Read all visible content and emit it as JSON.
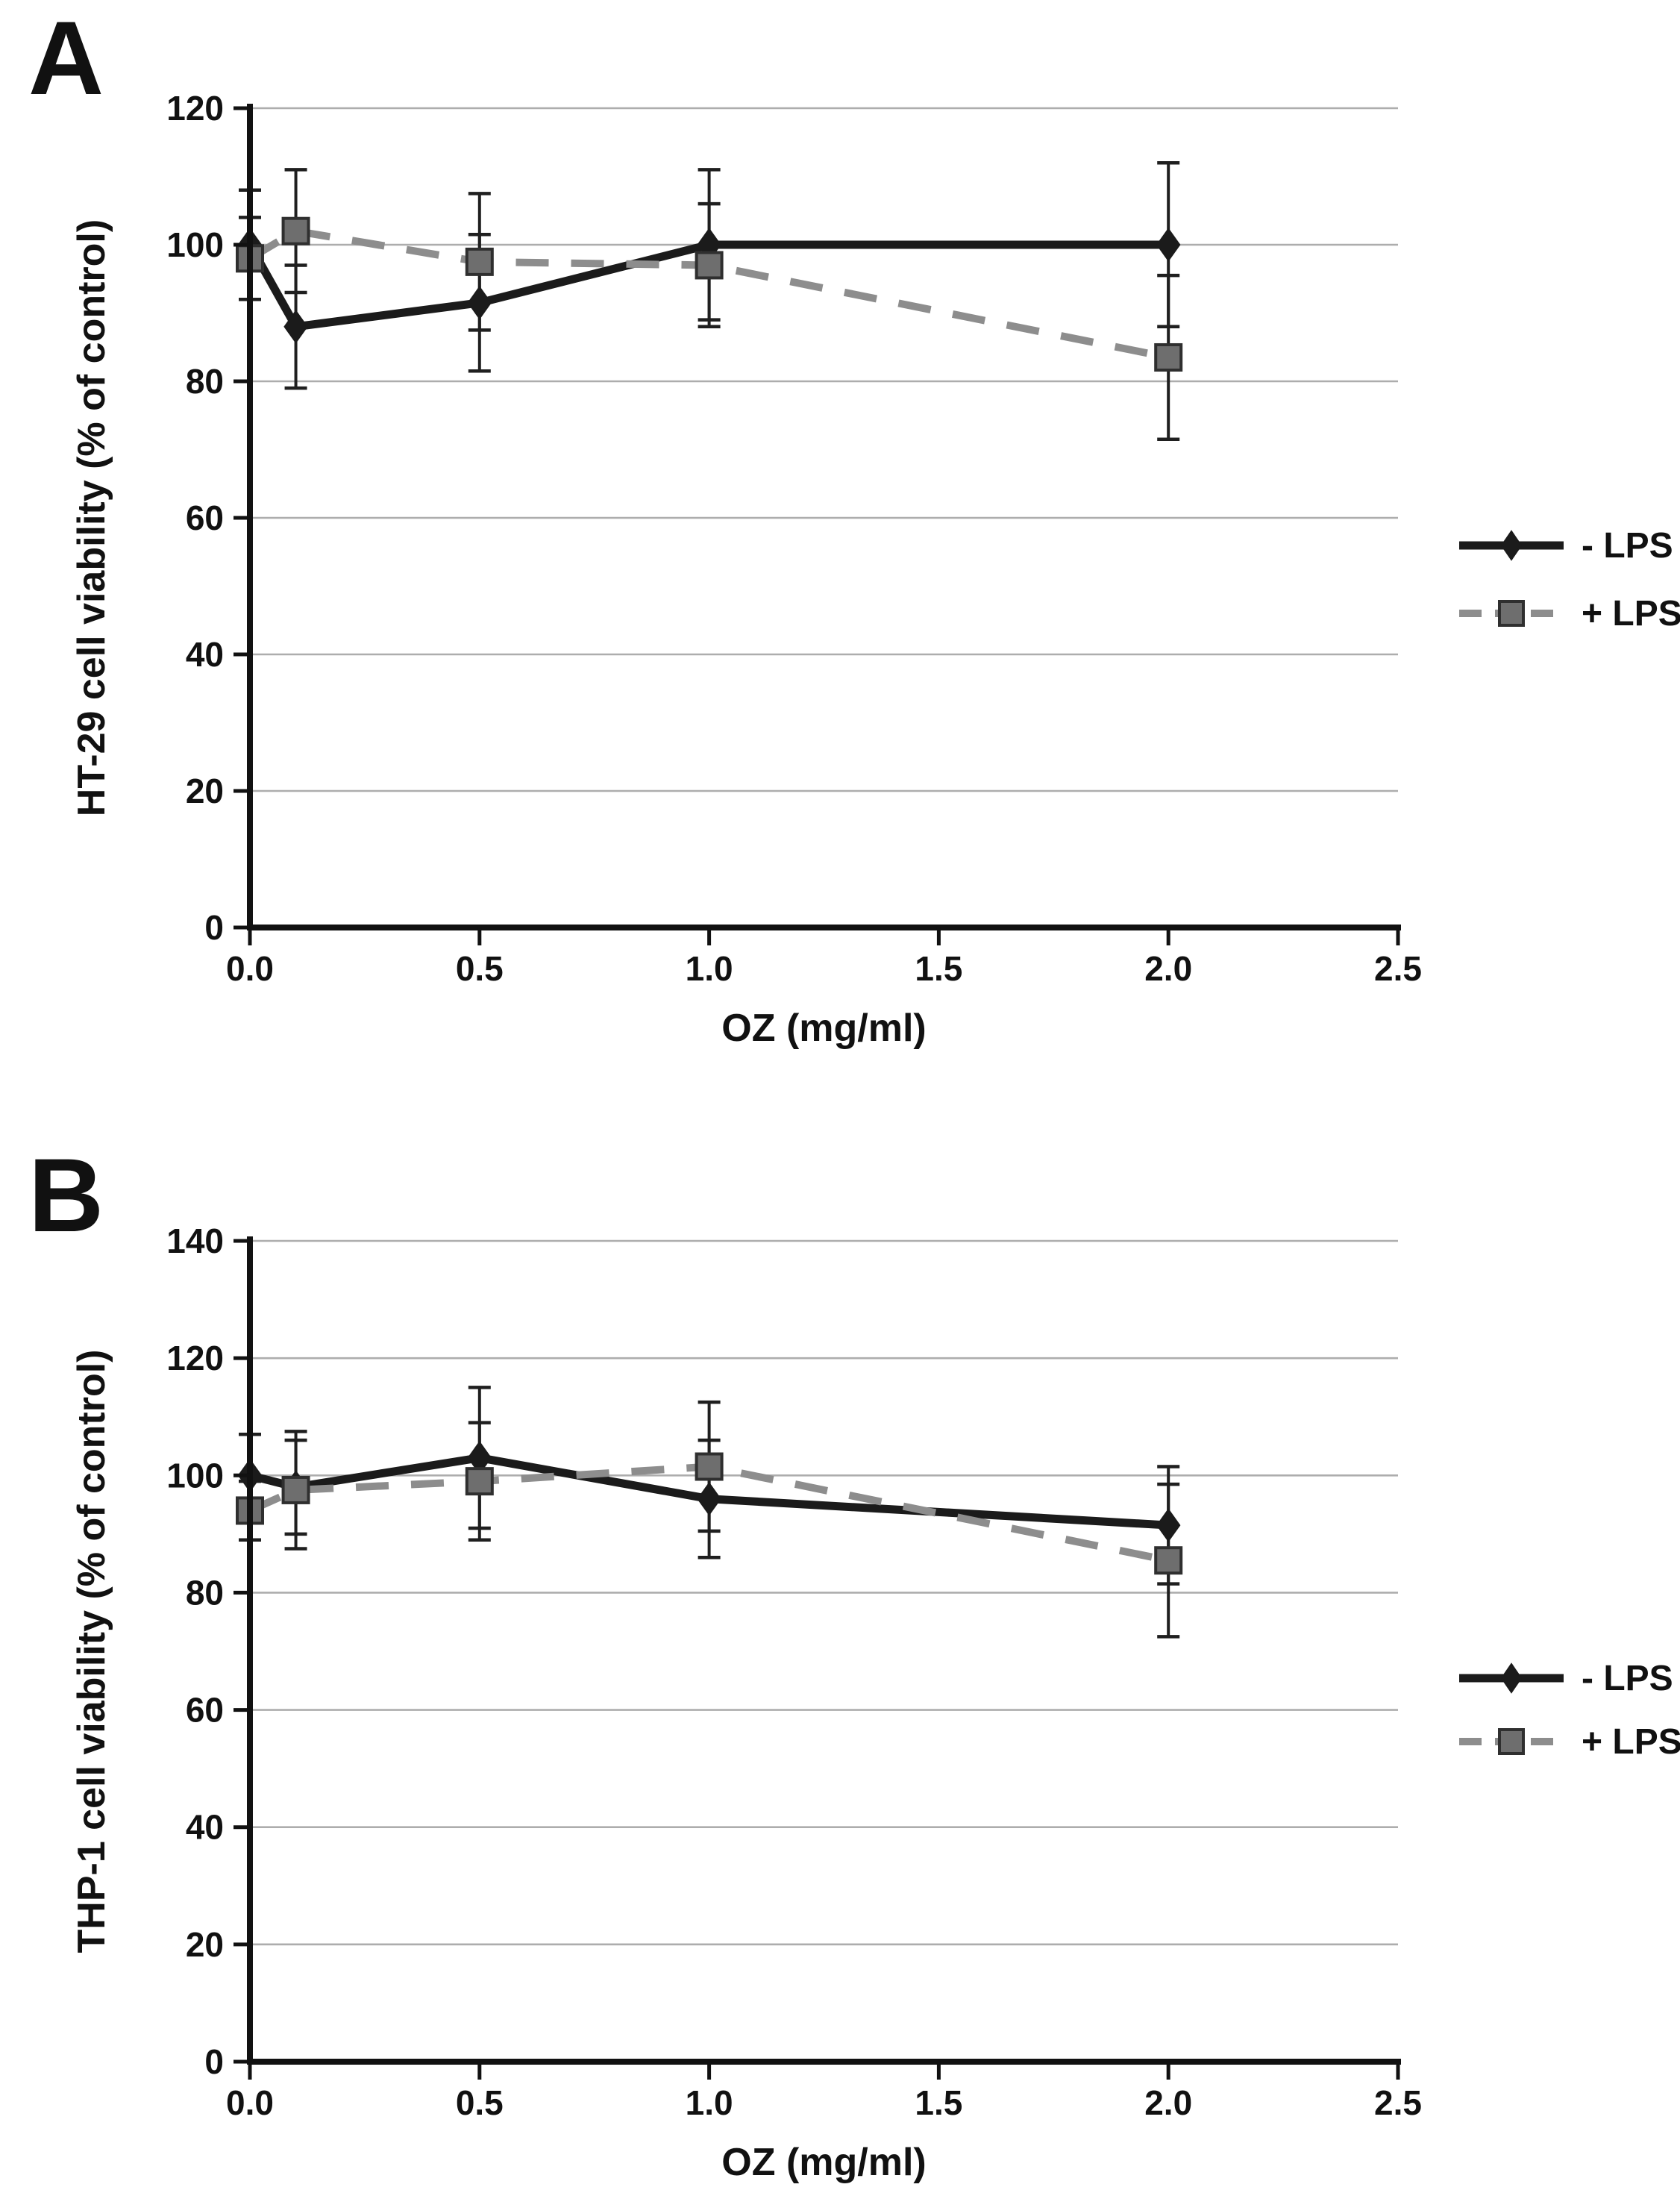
{
  "figure": {
    "description": "Two-panel line figure of cell viability versus OZ concentration with error bars",
    "background_color": "#ffffff"
  },
  "colors": {
    "grid": "#adadad",
    "axis": "#111111",
    "error_bar": "#1f1f1f",
    "text": "#111111",
    "series_minus_lps": "#1b1b1b",
    "series_plus_lps": "#8d8d8d",
    "square_marker_fill": "#6e6e6e",
    "square_marker_border": "#2f2f2f"
  },
  "chart_data": [
    {
      "panel_label": "A",
      "type": "line",
      "title": "",
      "xlabel": "OZ (mg/ml)",
      "ylabel": "HT-29 cell viability (% of control)",
      "x": [
        0,
        0.1,
        0.5,
        1.0,
        2.0
      ],
      "xlim": [
        0,
        2.5
      ],
      "xtick_values": [
        0,
        0.5,
        1.0,
        1.5,
        2.0,
        2.5
      ],
      "xtick_labels": [
        "0.0",
        "0.5",
        "1.0",
        "1.5",
        "2.0",
        "2.5"
      ],
      "ylim": [
        0,
        120
      ],
      "ytick_values": [
        0,
        20,
        40,
        60,
        80,
        100,
        120
      ],
      "grid": true,
      "legend_position": "right-middle",
      "series": [
        {
          "name": "- LPS",
          "line_style": "solid",
          "marker": "diamond",
          "values": [
            100,
            88,
            91.5,
            100,
            100
          ],
          "error_bars": [
            8,
            9,
            10,
            11,
            12
          ]
        },
        {
          "name": "+ LPS",
          "line_style": "dashed",
          "marker": "square",
          "values": [
            98,
            102,
            97.5,
            97,
            83.5
          ],
          "error_bars": [
            6,
            9,
            10,
            9,
            12
          ]
        }
      ]
    },
    {
      "panel_label": "B",
      "type": "line",
      "title": "",
      "xlabel": "OZ (mg/ml)",
      "ylabel": "THP-1 cell viability (% of control)",
      "x": [
        0,
        0.1,
        0.5,
        1.0,
        2.0
      ],
      "xlim": [
        0,
        2.5
      ],
      "xtick_values": [
        0,
        0.5,
        1.0,
        1.5,
        2.0,
        2.5
      ],
      "xtick_labels": [
        "0.0",
        "0.5",
        "1.0",
        "1.5",
        "2.0",
        "2.5"
      ],
      "ylim": [
        0,
        140
      ],
      "ytick_values": [
        0,
        20,
        40,
        60,
        80,
        100,
        120,
        140
      ],
      "grid": true,
      "legend_position": "right-middle",
      "series": [
        {
          "name": "- LPS",
          "line_style": "solid",
          "marker": "diamond",
          "values": [
            100,
            98,
            103,
            96,
            91.5
          ],
          "error_bars": [
            7,
            8,
            12,
            10,
            10
          ]
        },
        {
          "name": "+ LPS",
          "line_style": "dashed",
          "marker": "square",
          "values": [
            94,
            97.5,
            99,
            101.5,
            85.5
          ],
          "error_bars": [
            5,
            10,
            10,
            11,
            13
          ]
        }
      ]
    }
  ]
}
